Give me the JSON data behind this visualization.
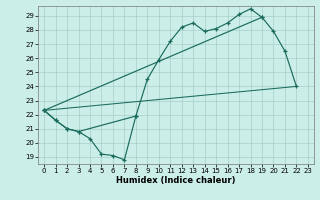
{
  "xlabel": "Humidex (Indice chaleur)",
  "bg_color": "#cceee8",
  "line_color": "#1a6b5e",
  "xlim": [
    -0.5,
    23.5
  ],
  "ylim": [
    18.5,
    29.7
  ],
  "xticks": [
    0,
    1,
    2,
    3,
    4,
    5,
    6,
    7,
    8,
    9,
    10,
    11,
    12,
    13,
    14,
    15,
    16,
    17,
    18,
    19,
    20,
    21,
    22,
    23
  ],
  "yticks": [
    19,
    20,
    21,
    22,
    23,
    24,
    25,
    26,
    27,
    28,
    29
  ],
  "line1_x": [
    0,
    1,
    2,
    3,
    4,
    5,
    6,
    7,
    8
  ],
  "line1_y": [
    22.3,
    21.6,
    21.0,
    20.8,
    20.3,
    19.2,
    19.1,
    18.8,
    21.9
  ],
  "line2_x": [
    0,
    1,
    2,
    3,
    8,
    9,
    10,
    11,
    12,
    13,
    14,
    15,
    16,
    17,
    18,
    19
  ],
  "line2_y": [
    22.3,
    21.6,
    21.0,
    20.8,
    21.9,
    24.5,
    25.9,
    27.2,
    28.2,
    28.5,
    27.9,
    28.1,
    28.5,
    29.1,
    29.5,
    28.9
  ],
  "line3_x": [
    0,
    19,
    20,
    21,
    22
  ],
  "line3_y": [
    22.3,
    28.9,
    27.9,
    26.5,
    24.0
  ],
  "line4_x": [
    0,
    22
  ],
  "line4_y": [
    22.3,
    24.0
  ]
}
